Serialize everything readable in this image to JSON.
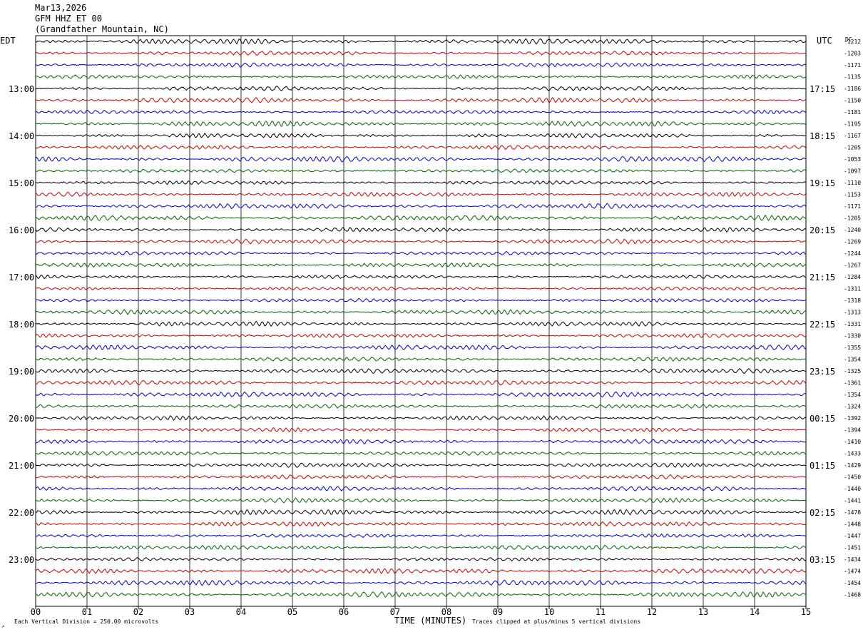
{
  "header": {
    "date": "Mar13,2026",
    "station": "GFM HHZ ET 00",
    "location": "(Grandfather Mountain, NC)"
  },
  "left_zone_label": "EDT",
  "right_zone_label": "UTC",
  "dc_label": "DC",
  "footer": {
    "scale_note": "Each Vertical Division =  250.00 microvolts",
    "x_axis_title": "TIME (MINUTES)",
    "clip_note": "Traces clipped at plus/minus 5 vertical divisions",
    "corner_mark": "↗"
  },
  "colors": {
    "trace_cycle": [
      "#000000",
      "#cc0000",
      "#0000cc",
      "#006600"
    ],
    "grid": "#000000"
  },
  "chart_data": {
    "type": "line",
    "description_type": "helicorder",
    "x_ticks": [
      "00",
      "01",
      "02",
      "03",
      "04",
      "05",
      "06",
      "07",
      "08",
      "09",
      "10",
      "11",
      "12",
      "13",
      "14",
      "15"
    ],
    "xlim": [
      0,
      15
    ],
    "rows_per_hour": 4,
    "left_hour_labels": [
      "13:00",
      "14:00",
      "15:00",
      "16:00",
      "17:00",
      "18:00",
      "19:00",
      "20:00",
      "21:00",
      "22:00",
      "23:00"
    ],
    "right_hour_labels": [
      "17:15",
      "18:15",
      "19:15",
      "20:15",
      "21:15",
      "22:15",
      "23:15",
      "00:15",
      "01:15",
      "02:15",
      "03:15"
    ],
    "dc_offsets": [
      "-1212",
      "-1203",
      "-1171",
      "-1135",
      "-1186",
      "-1150",
      "-1181",
      "-1195",
      "-1167",
      "-1205",
      "-1053",
      "-1097",
      "-1110",
      "-1153",
      "-1171",
      "-1205",
      "-1240",
      "-1269",
      "-1244",
      "-1267",
      "-1284",
      "-1311",
      "-1318",
      "-1313",
      "-1331",
      "-1330",
      "-1355",
      "-1354",
      "-1325",
      "-1361",
      "-1354",
      "-1324",
      "-1392",
      "-1394",
      "-1410",
      "-1433",
      "-1429",
      "-1450",
      "-1440",
      "-1441",
      "-1478",
      "-1448",
      "-1447",
      "-1451",
      "-1434",
      "-1474",
      "-1454",
      "-1468"
    ]
  }
}
